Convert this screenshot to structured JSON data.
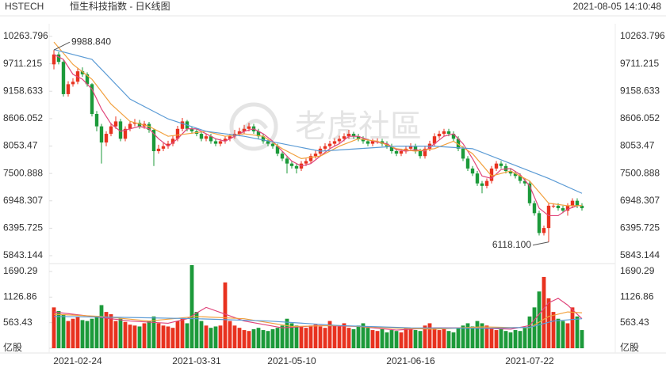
{
  "header": {
    "symbol": "HSTECH",
    "title": "恒生科技指数 - 日K线图",
    "timestamp": "2021-08-05 14:10:48"
  },
  "watermark": "老虎社區",
  "chart_data": [
    {
      "type": "candlestick",
      "up_color": "#e8321f",
      "down_color": "#1c9a3a",
      "categories": [
        null,
        null,
        null,
        null,
        null,
        "2021-02-24",
        null,
        null,
        null,
        null,
        null,
        null,
        null,
        null,
        null,
        null,
        null,
        null,
        null,
        null,
        null,
        null,
        null,
        null,
        null,
        null,
        null,
        null,
        null,
        null,
        "2021-03-31",
        null,
        null,
        null,
        null,
        null,
        null,
        null,
        null,
        null,
        null,
        null,
        null,
        null,
        null,
        null,
        null,
        null,
        null,
        null,
        "2021-05-10",
        null,
        null,
        null,
        null,
        null,
        null,
        null,
        null,
        null,
        null,
        null,
        null,
        null,
        null,
        null,
        null,
        null,
        null,
        null,
        null,
        null,
        null,
        null,
        null,
        "2021-06-16",
        null,
        null,
        null,
        null,
        null,
        null,
        null,
        null,
        null,
        null,
        null,
        null,
        null,
        null,
        null,
        null,
        null,
        null,
        null,
        null,
        null,
        null,
        null,
        null,
        "2021-07-22",
        null,
        null,
        null,
        null,
        null,
        null,
        null,
        null,
        null,
        null,
        null
      ],
      "open": [
        9700,
        9900,
        9750,
        9100,
        9300,
        9350,
        9560,
        9500,
        9300,
        8700,
        8450,
        8125,
        8300,
        8450,
        8550,
        8200,
        8400,
        8500,
        8520,
        8450,
        8500,
        8380,
        7950,
        8000,
        8050,
        8100,
        8200,
        8400,
        8550,
        8400,
        8350,
        8300,
        8200,
        8250,
        8150,
        8100,
        8150,
        8200,
        8250,
        8300,
        8350,
        8400,
        8450,
        8350,
        8250,
        8150,
        8100,
        8050,
        7900,
        7800,
        7700,
        7650,
        7600,
        7700,
        7750,
        7850,
        7900,
        8000,
        8050,
        8100,
        8150,
        8200,
        8250,
        8300,
        8250,
        8200,
        8150,
        8100,
        8150,
        8150,
        8100,
        8050,
        7950,
        7900,
        7950,
        8000,
        8050,
        7950,
        7850,
        8000,
        8100,
        8250,
        8300,
        8350,
        8300,
        8200,
        8000,
        7800,
        7600,
        7500,
        7300,
        7250,
        7350,
        7600,
        7700,
        7650,
        7550,
        7500,
        7450,
        7350,
        7300,
        6900,
        6700,
        6300,
        6400,
        6850,
        6850,
        6800,
        6750,
        6850,
        6950,
        6850
      ],
      "high": [
        9988.84,
        9950,
        9780,
        9360,
        9420,
        9620,
        9640,
        9540,
        9320,
        8760,
        8500,
        8350,
        8520,
        8650,
        8600,
        8450,
        8560,
        8600,
        8580,
        8560,
        8540,
        8400,
        8080,
        8120,
        8160,
        8260,
        8460,
        8620,
        8580,
        8450,
        8400,
        8350,
        8300,
        8300,
        8200,
        8200,
        8260,
        8300,
        8380,
        8420,
        8480,
        8520,
        8500,
        8400,
        8300,
        8200,
        8150,
        8100,
        7950,
        7850,
        7750,
        7700,
        7750,
        7800,
        7900,
        7960,
        8050,
        8110,
        8160,
        8210,
        8260,
        8310,
        8380,
        8340,
        8300,
        8250,
        8200,
        8200,
        8210,
        8200,
        8150,
        8100,
        8000,
        8000,
        8060,
        8110,
        8100,
        8000,
        8060,
        8160,
        8310,
        8360,
        8400,
        8400,
        8350,
        8250,
        8050,
        7850,
        7650,
        7550,
        7350,
        7400,
        7650,
        7750,
        7750,
        7700,
        7600,
        7550,
        7500,
        7400,
        7350,
        6950,
        6750,
        6450,
        6900,
        6900,
        6900,
        6850,
        6900,
        7000,
        7000,
        6900
      ],
      "low": [
        9600,
        9700,
        9050,
        9050,
        9250,
        9300,
        9450,
        9250,
        8650,
        8350,
        7700,
        8050,
        8250,
        8400,
        8150,
        8150,
        8350,
        8450,
        8400,
        8400,
        8320,
        7650,
        7900,
        7950,
        8000,
        8050,
        8150,
        8350,
        8350,
        8300,
        8250,
        8150,
        8150,
        8100,
        8050,
        8050,
        8100,
        8150,
        8200,
        8250,
        8300,
        8350,
        8300,
        8200,
        8100,
        8050,
        8000,
        7850,
        7750,
        7500,
        7600,
        7500,
        7550,
        7650,
        7700,
        7800,
        7850,
        7950,
        8000,
        8050,
        8100,
        8150,
        8200,
        8200,
        8150,
        8100,
        8050,
        8050,
        8100,
        8050,
        8000,
        7900,
        7850,
        7850,
        7900,
        7950,
        7900,
        7800,
        7800,
        7950,
        8050,
        8200,
        8250,
        8250,
        8150,
        7950,
        7750,
        7550,
        7450,
        7250,
        7100,
        7200,
        7300,
        7550,
        7600,
        7500,
        7450,
        7400,
        7300,
        7250,
        6850,
        6650,
        6250,
        6250,
        6118.1,
        6800,
        6750,
        6700,
        6650,
        6800,
        6800,
        6750
      ],
      "close": [
        9900,
        9750,
        9100,
        9300,
        9350,
        9560,
        9500,
        9300,
        8700,
        8450,
        8125,
        8300,
        8450,
        8550,
        8200,
        8400,
        8500,
        8520,
        8450,
        8500,
        8380,
        7950,
        8000,
        8050,
        8100,
        8200,
        8400,
        8550,
        8400,
        8350,
        8300,
        8200,
        8250,
        8150,
        8100,
        8150,
        8200,
        8250,
        8300,
        8350,
        8400,
        8450,
        8350,
        8250,
        8150,
        8100,
        8050,
        7900,
        7800,
        7700,
        7650,
        7600,
        7700,
        7750,
        7850,
        7900,
        8000,
        8050,
        8100,
        8150,
        8200,
        8250,
        8300,
        8250,
        8200,
        8150,
        8100,
        8150,
        8150,
        8100,
        8050,
        7950,
        7900,
        7950,
        8000,
        8050,
        7950,
        7850,
        8000,
        8100,
        8250,
        8300,
        8350,
        8300,
        8200,
        8000,
        7800,
        7600,
        7500,
        7300,
        7250,
        7350,
        7600,
        7700,
        7650,
        7550,
        7500,
        7450,
        7350,
        7300,
        6900,
        6700,
        6300,
        6400,
        6850,
        6850,
        6800,
        6750,
        6850,
        6950,
        6850,
        6800
      ],
      "lines": [
        {
          "color": "#e0457b",
          "x": [
            0,
            2,
            4,
            6,
            8,
            10,
            12,
            14,
            16,
            18,
            20,
            22,
            24,
            26,
            28,
            30,
            32,
            34,
            36,
            38,
            40,
            42,
            44,
            46,
            48,
            50,
            52,
            54,
            56,
            58,
            60,
            62,
            64,
            66,
            68,
            70,
            72,
            74,
            76,
            78,
            80,
            82,
            84,
            86,
            88,
            90,
            92,
            94,
            96,
            98,
            100,
            102,
            104,
            106,
            108,
            110,
            111
          ],
          "values": [
            9900,
            9800,
            9500,
            9400,
            9200,
            8800,
            8500,
            8350,
            8400,
            8450,
            8400,
            8200,
            8050,
            8200,
            8400,
            8400,
            8300,
            8200,
            8150,
            8250,
            8350,
            8400,
            8300,
            8150,
            7950,
            7750,
            7650,
            7700,
            7850,
            8000,
            8100,
            8250,
            8250,
            8180,
            8130,
            8100,
            7980,
            7950,
            7980,
            7950,
            8100,
            8250,
            8300,
            8100,
            7800,
            7450,
            7400,
            7580,
            7600,
            7480,
            7250,
            6800,
            6650,
            6650,
            6780,
            6850,
            6850
          ]
        },
        {
          "color": "#f2a03d",
          "x": [
            0,
            4,
            8,
            12,
            16,
            20,
            24,
            28,
            32,
            36,
            40,
            44,
            48,
            52,
            56,
            60,
            64,
            68,
            72,
            76,
            80,
            84,
            88,
            92,
            96,
            100,
            104,
            108,
            111
          ],
          "values": [
            10150,
            9700,
            9400,
            8900,
            8550,
            8450,
            8250,
            8300,
            8350,
            8250,
            8300,
            8250,
            8000,
            7800,
            7850,
            8050,
            8200,
            8150,
            8000,
            7950,
            8000,
            8150,
            7900,
            7450,
            7550,
            7350,
            6900,
            6850,
            6850
          ]
        },
        {
          "color": "#5b9bd5",
          "x": [
            0,
            8,
            16,
            24,
            32,
            40,
            48,
            56,
            64,
            72,
            80,
            88,
            96,
            104,
            111
          ],
          "values": [
            10000,
            9800,
            9000,
            8600,
            8350,
            8250,
            8100,
            7950,
            8000,
            8050,
            8050,
            8000,
            7700,
            7400,
            7100
          ]
        }
      ],
      "ylim": [
        5843.144,
        10263.796
      ],
      "yticks": [
        10263.796,
        9711.215,
        9158.633,
        8606.052,
        8053.47,
        7500.888,
        6948.307,
        6395.725,
        5843.144
      ],
      "annotations": [
        {
          "label": "9988.840",
          "x": 0,
          "y": 9988.84
        },
        {
          "label": "6118.100",
          "x": 104,
          "y": 6118.1
        }
      ]
    },
    {
      "type": "bar",
      "values": [
        900,
        820,
        750,
        600,
        650,
        700,
        620,
        600,
        650,
        700,
        950,
        800,
        750,
        600,
        650,
        580,
        520,
        500,
        480,
        550,
        600,
        700,
        550,
        500,
        480,
        450,
        600,
        650,
        550,
        1830,
        800,
        600,
        500,
        450,
        480,
        500,
        1450,
        600,
        500,
        450,
        400,
        380,
        420,
        450,
        400,
        380,
        420,
        450,
        500,
        650,
        550,
        500,
        480,
        450,
        500,
        520,
        480,
        450,
        600,
        500,
        480,
        550,
        450,
        420,
        500,
        550,
        450,
        400,
        380,
        420,
        350,
        400,
        380,
        350,
        450,
        420,
        400,
        380,
        500,
        550,
        450,
        400,
        420,
        380,
        350,
        450,
        500,
        550,
        480,
        600,
        550,
        500,
        450,
        400,
        420,
        380,
        350,
        400,
        380,
        450,
        700,
        900,
        1250,
        1570,
        1100,
        800,
        650,
        600,
        550,
        900,
        700,
        400
      ],
      "lines": [
        {
          "color": "#e0457b",
          "x": [
            0,
            8,
            16,
            24,
            28,
            32,
            36,
            40,
            48,
            56,
            64,
            72,
            80,
            88,
            96,
            100,
            104,
            106,
            108,
            111
          ],
          "values": [
            800,
            700,
            600,
            550,
            650,
            900,
            750,
            600,
            450,
            500,
            480,
            400,
            450,
            450,
            420,
            500,
            1000,
            1100,
            950,
            650
          ]
        },
        {
          "color": "#f2a03d",
          "x": [
            0,
            10,
            20,
            30,
            40,
            50,
            60,
            70,
            80,
            90,
            100,
            104,
            108,
            111
          ],
          "values": [
            750,
            700,
            600,
            700,
            650,
            480,
            500,
            450,
            420,
            470,
            450,
            700,
            800,
            780
          ]
        },
        {
          "color": "#5b9bd5",
          "x": [
            0,
            15,
            30,
            45,
            60,
            75,
            90,
            100,
            105,
            111
          ],
          "values": [
            700,
            680,
            650,
            600,
            500,
            450,
            440,
            460,
            600,
            650
          ]
        }
      ],
      "ylim": [
        0,
        1830
      ],
      "yticks": [
        1690.29,
        1126.86,
        563.43,
        {
          "value": 0,
          "label": "亿股"
        }
      ]
    }
  ]
}
